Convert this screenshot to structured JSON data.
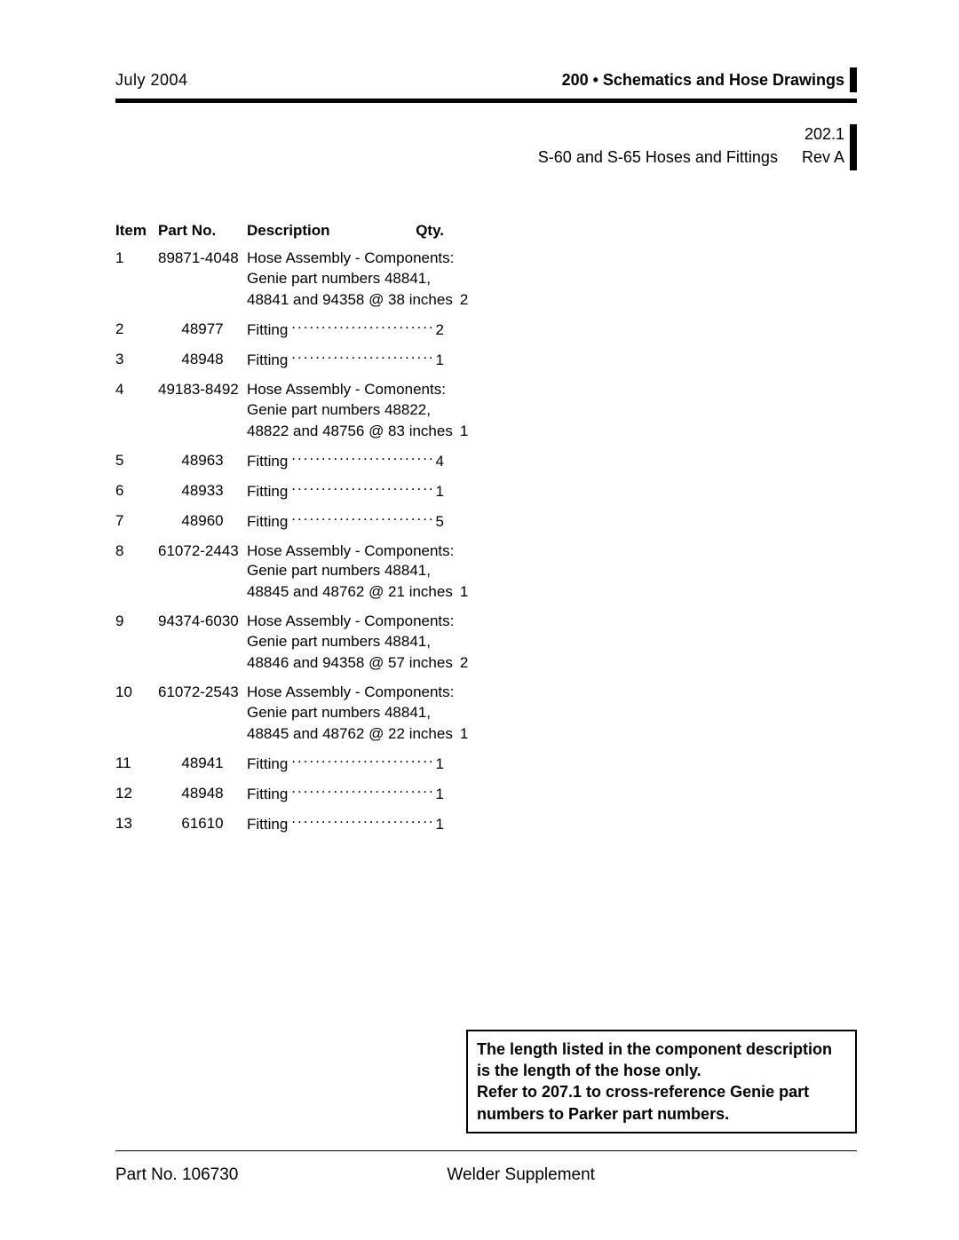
{
  "header": {
    "date": "July 2004",
    "section": "200 • Schematics and Hose Drawings"
  },
  "subheader": {
    "number": "202.1",
    "title": "S-60 and S-65 Hoses and Fittings",
    "rev": "Rev A"
  },
  "table": {
    "headers": {
      "item": "Item",
      "part": "Part No.",
      "desc": "Description",
      "qty": "Qty."
    },
    "rows": [
      {
        "item": "1",
        "part": "89871-4048",
        "part_align": "left",
        "lines": [
          "Hose Assembly - Components:",
          "Genie part numbers 48841,"
        ],
        "last": "48841 and 94358 @ 38 inches",
        "qty": "2"
      },
      {
        "item": "2",
        "part": "48977",
        "lines": [],
        "last": "Fitting",
        "qty": "2"
      },
      {
        "item": "3",
        "part": "48948",
        "lines": [],
        "last": "Fitting",
        "qty": "1"
      },
      {
        "item": "4",
        "part": "49183-8492",
        "part_align": "left",
        "lines": [
          "Hose Assembly - Comonents:",
          "Genie part numbers 48822,"
        ],
        "last": "48822 and 48756 @ 83 inches",
        "qty": "1"
      },
      {
        "item": "5",
        "part": "48963",
        "lines": [],
        "last": "Fitting",
        "qty": "4"
      },
      {
        "item": "6",
        "part": "48933",
        "lines": [],
        "last": "Fitting",
        "qty": "1"
      },
      {
        "item": "7",
        "part": "48960",
        "lines": [],
        "last": "Fitting",
        "qty": "5"
      },
      {
        "item": "8",
        "part": "61072-2443",
        "part_align": "left",
        "lines": [
          "Hose Assembly - Components:",
          "Genie part numbers 48841,"
        ],
        "last": "48845 and 48762 @ 21 inches",
        "qty": "1"
      },
      {
        "item": "9",
        "part": "94374-6030",
        "part_align": "left",
        "lines": [
          "Hose Assembly - Components:",
          "Genie part numbers 48841,"
        ],
        "last": "48846 and 94358 @ 57 inches",
        "qty": "2"
      },
      {
        "item": "10",
        "part": "61072-2543",
        "part_align": "left",
        "lines": [
          "Hose Assembly - Components:",
          "Genie part numbers 48841,"
        ],
        "last": "48845 and 48762 @ 22 inches",
        "qty": "1"
      },
      {
        "item": "11",
        "part": "48941",
        "lines": [],
        "last": "Fitting",
        "qty": "1"
      },
      {
        "item": "12",
        "part": "48948",
        "lines": [],
        "last": "Fitting",
        "qty": "1"
      },
      {
        "item": "13",
        "part": "61610",
        "lines": [],
        "last": "Fitting",
        "qty": "1"
      }
    ]
  },
  "note": {
    "l1": "The length listed in the component description",
    "l2": "is the length of the hose only.",
    "l3": "Refer to 207.1 to cross-reference Genie part",
    "l4": "numbers to Parker part numbers."
  },
  "footer": {
    "left": "Part No. 106730",
    "center": "Welder Supplement"
  }
}
